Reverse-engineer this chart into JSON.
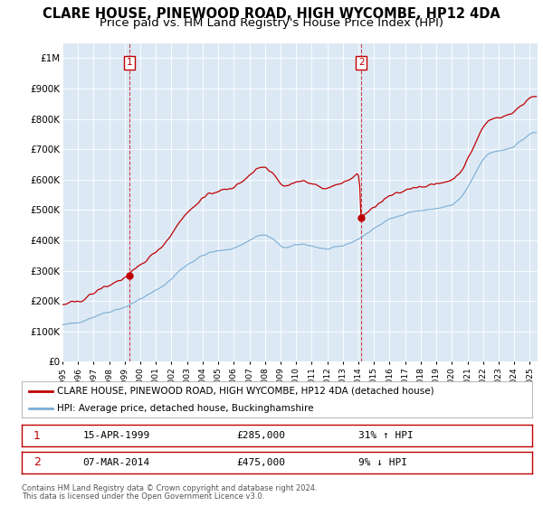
{
  "title": "CLARE HOUSE, PINEWOOD ROAD, HIGH WYCOMBE, HP12 4DA",
  "subtitle": "Price paid vs. HM Land Registry's House Price Index (HPI)",
  "ylim": [
    0,
    1050000
  ],
  "yticks": [
    0,
    100000,
    200000,
    300000,
    400000,
    500000,
    600000,
    700000,
    800000,
    900000,
    1000000
  ],
  "ytick_labels": [
    "£0",
    "£100K",
    "£200K",
    "£300K",
    "£400K",
    "£500K",
    "£600K",
    "£700K",
    "£800K",
    "£900K",
    "£1M"
  ],
  "xlim_start": 1995.0,
  "xlim_end": 2025.5,
  "red_line_label": "CLARE HOUSE, PINEWOOD ROAD, HIGH WYCOMBE, HP12 4DA (detached house)",
  "blue_line_label": "HPI: Average price, detached house, Buckinghamshire",
  "sale1_date": "15-APR-1999",
  "sale1_price": 285000,
  "sale1_x": 1999.29,
  "sale1_hpi_note": "31% ↑ HPI",
  "sale2_date": "07-MAR-2014",
  "sale2_price": 475000,
  "sale2_x": 2014.18,
  "sale2_hpi_note": "9% ↓ HPI",
  "footnote1": "Contains HM Land Registry data © Crown copyright and database right 2024.",
  "footnote2": "This data is licensed under the Open Government Licence v3.0.",
  "background_color": "#ffffff",
  "chart_bg_color": "#dce9f5",
  "grid_color": "#ffffff",
  "red_color": "#c00000",
  "blue_color": "#7aadd4",
  "title_fontsize": 10.5,
  "subtitle_fontsize": 9.5
}
